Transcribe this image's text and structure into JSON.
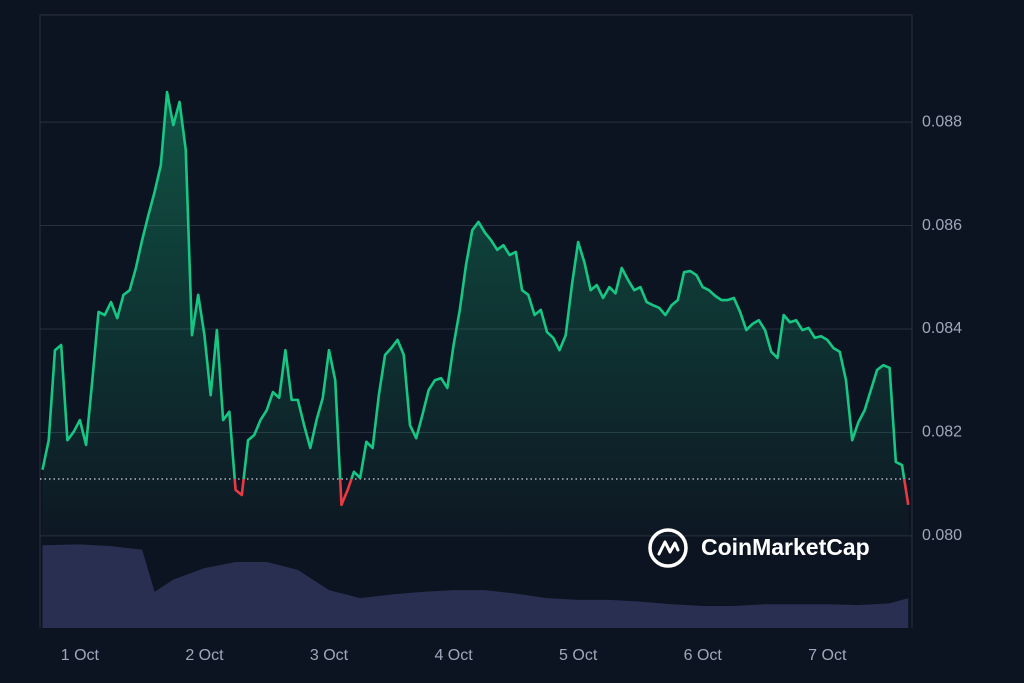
{
  "chart_data": [
    {
      "type": "line",
      "x": [
        0.7,
        0.75,
        0.8,
        0.85,
        0.9,
        0.95,
        1,
        1.05,
        1.1,
        1.15,
        1.2,
        1.25,
        1.3,
        1.35,
        1.4,
        1.45,
        1.5,
        1.55,
        1.6,
        1.65,
        1.7,
        1.75,
        1.8,
        1.85,
        1.9,
        1.95,
        2,
        2.05,
        2.1,
        2.15,
        2.2,
        2.25,
        2.3,
        2.35,
        2.4,
        2.45,
        2.5,
        2.55,
        2.6,
        2.65,
        2.7,
        2.75,
        2.8,
        2.85,
        2.9,
        2.95,
        3,
        3.05,
        3.1,
        3.15,
        3.2,
        3.25,
        3.3,
        3.35,
        3.4,
        3.45,
        3.5,
        3.55,
        3.6,
        3.65,
        3.7,
        3.75,
        3.8,
        3.85,
        3.9,
        3.95,
        4,
        4.05,
        4.1,
        4.15,
        4.2,
        4.25,
        4.3,
        4.35,
        4.4,
        4.45,
        4.5,
        4.55,
        4.6,
        4.65,
        4.7,
        4.75,
        4.8,
        4.85,
        4.9,
        4.95,
        5,
        5.05,
        5.1,
        5.15,
        5.2,
        5.25,
        5.3,
        5.35,
        5.4,
        5.45,
        5.5,
        5.55,
        5.6,
        5.65,
        5.7,
        5.75,
        5.8,
        5.85,
        5.9,
        5.95,
        6,
        6.05,
        6.1,
        6.15,
        6.2,
        6.25,
        6.3,
        6.35,
        6.4,
        6.45,
        6.5,
        6.55,
        6.6,
        6.65,
        6.7,
        6.75,
        6.8,
        6.85,
        6.9,
        6.95,
        7,
        7.05,
        7.1,
        7.15,
        7.2,
        7.25,
        7.3,
        7.35,
        7.4,
        7.45,
        7.5,
        7.55,
        7.6,
        7.65
      ],
      "values": [
        0.08128,
        0.08185,
        0.08359,
        0.08369,
        0.08185,
        0.08201,
        0.08224,
        0.08176,
        0.08301,
        0.08433,
        0.08427,
        0.08452,
        0.08421,
        0.08466,
        0.08475,
        0.08518,
        0.08572,
        0.0862,
        0.08665,
        0.08717,
        0.08858,
        0.08794,
        0.08839,
        0.08746,
        0.08388,
        0.08466,
        0.08388,
        0.08272,
        0.08398,
        0.08224,
        0.0824,
        0.08089,
        0.08079,
        0.08185,
        0.08195,
        0.08224,
        0.08243,
        0.08278,
        0.08267,
        0.08359,
        0.08263,
        0.08263,
        0.08214,
        0.0817,
        0.08224,
        0.08267,
        0.08359,
        0.08301,
        0.0806,
        0.08089,
        0.08124,
        0.08112,
        0.08182,
        0.0817,
        0.08272,
        0.0835,
        0.08363,
        0.08379,
        0.0835,
        0.08214,
        0.08189,
        0.08234,
        0.08282,
        0.08301,
        0.08305,
        0.08286,
        0.08369,
        0.08437,
        0.08524,
        0.08591,
        0.08607,
        0.08587,
        0.08572,
        0.08553,
        0.08562,
        0.08543,
        0.08549,
        0.08475,
        0.08466,
        0.08427,
        0.08437,
        0.08394,
        0.08383,
        0.08359,
        0.08388,
        0.08485,
        0.08568,
        0.08529,
        0.08475,
        0.08485,
        0.0846,
        0.08481,
        0.08469,
        0.08518,
        0.08495,
        0.08475,
        0.08481,
        0.08452,
        0.08446,
        0.08441,
        0.08427,
        0.08446,
        0.08456,
        0.0851,
        0.08512,
        0.08504,
        0.08481,
        0.08475,
        0.08464,
        0.08456,
        0.08456,
        0.0846,
        0.08433,
        0.08398,
        0.0841,
        0.08417,
        0.08398,
        0.08356,
        0.08344,
        0.08427,
        0.08413,
        0.08417,
        0.08398,
        0.08402,
        0.08383,
        0.08386,
        0.08379,
        0.08363,
        0.08356,
        0.08301,
        0.08185,
        0.0822,
        0.08243,
        0.08282,
        0.08321,
        0.0833,
        0.08325,
        0.08143,
        0.08137,
        0.0806
      ],
      "color": "#16c784",
      "down_color": "#ea3943",
      "baseline": 0.0811,
      "xlim": [
        0.68,
        7.68
      ],
      "xticks": [
        {
          "value": 1,
          "label": "1 Oct"
        },
        {
          "value": 2,
          "label": "2 Oct"
        },
        {
          "value": 3,
          "label": "3 Oct"
        },
        {
          "value": 4,
          "label": "4 Oct"
        },
        {
          "value": 5,
          "label": "5 Oct"
        },
        {
          "value": 6,
          "label": "6 Oct"
        },
        {
          "value": 7,
          "label": "7 Oct"
        }
      ],
      "ylim": [
        0.07822,
        0.09007
      ],
      "yticks": [
        {
          "value": 0.08,
          "label": "0.080"
        },
        0.082,
        0.084,
        0.086,
        0.088
      ],
      "grid": true,
      "watermark": "CoinMarketCap"
    },
    {
      "type": "area",
      "x": [
        0.7,
        1,
        1.25,
        1.5,
        1.6,
        1.75,
        2,
        2.25,
        2.5,
        2.75,
        3,
        3.25,
        3.5,
        3.75,
        4,
        4.25,
        4.5,
        4.75,
        5,
        5.25,
        5.5,
        5.75,
        6,
        6.25,
        6.5,
        6.75,
        7,
        7.25,
        7.5,
        7.65
      ],
      "values": [
        94,
        95,
        93,
        89,
        41,
        55,
        68,
        75,
        75,
        66,
        43,
        34,
        38,
        41,
        43,
        43,
        39,
        34,
        32,
        32,
        30,
        27,
        25,
        25,
        27,
        27,
        27,
        26,
        28,
        34
      ],
      "color": "#2c3256",
      "xlim": [
        0.68,
        7.68
      ],
      "ylim": [
        0,
        100
      ]
    }
  ]
}
